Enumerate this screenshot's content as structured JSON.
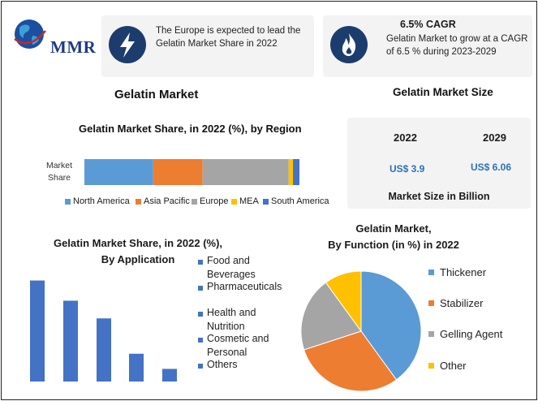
{
  "brand": {
    "name": "MMR"
  },
  "info_cards": [
    {
      "icon": "lightning-icon",
      "text_line1": "The Europe is expected to lead the",
      "text_line2": "Gelatin Market Share in 2022"
    },
    {
      "icon": "flame-icon",
      "heading": "6.5% CAGR",
      "text_line1": "Gelatin Market to grow at a CAGR",
      "text_line2": "of 6.5 % during 2023-2029"
    }
  ],
  "main_title": "Gelatin Market",
  "market_size": {
    "title": "Gelatin Market Size",
    "year1": "2022",
    "value1": "US$ 3.9",
    "year2": "2029",
    "value2": "US$ 6.06",
    "footer": "Market Size in Billion"
  },
  "colors": {
    "north_america": "#5b9bd5",
    "asia_pacific": "#ed7d31",
    "europe": "#a5a5a5",
    "mea": "#ffc000",
    "south_america": "#4472c4",
    "bar_blue": "#4472c4"
  },
  "chart_data": [
    {
      "type": "bar",
      "orientation": "horizontal-stacked",
      "title": "Gelatin Market Share, in 2022 (%), by Region",
      "category_label_line1": "Market",
      "category_label_line2": "Share",
      "categories": [
        "Market Share"
      ],
      "series": [
        {
          "name": "North America",
          "values": [
            32
          ]
        },
        {
          "name": "Asia Pacific",
          "values": [
            23
          ]
        },
        {
          "name": "Europe",
          "values": [
            40
          ]
        },
        {
          "name": "MEA",
          "values": [
            2
          ]
        },
        {
          "name": "South America",
          "values": [
            3
          ]
        }
      ],
      "legend": "bottom"
    },
    {
      "type": "bar",
      "title_line1": "Gelatin Market Share, in 2022 (%),",
      "title_line2": "By Application",
      "categories": [
        "Food and Beverages",
        "Pharmaceuticals",
        "Health and Nutrition",
        "Cosmetic and Personal",
        "Others"
      ],
      "legend_items": [
        {
          "line1": "Food and",
          "line2": "Beverages"
        },
        {
          "line1": "Pharmaceuticals",
          "line2": ""
        },
        {
          "line1": "Health and",
          "line2": "Nutrition"
        },
        {
          "line1": "Cosmetic and",
          "line2": "Personal"
        },
        {
          "line1": "Others",
          "line2": ""
        }
      ],
      "values": [
        40,
        32,
        25,
        11,
        5
      ],
      "ylim": [
        0,
        45
      ],
      "legend": "right"
    },
    {
      "type": "pie",
      "title_line1": "Gelatin Market,",
      "title_line2": "By Function (in %) in 2022",
      "categories": [
        "Thickener",
        "Stabilizer",
        "Gelling Agent",
        "Other"
      ],
      "values": [
        40,
        30,
        20,
        10
      ],
      "colors": [
        "#5b9bd5",
        "#ed7d31",
        "#a5a5a5",
        "#ffc000"
      ],
      "legend": "right"
    }
  ]
}
